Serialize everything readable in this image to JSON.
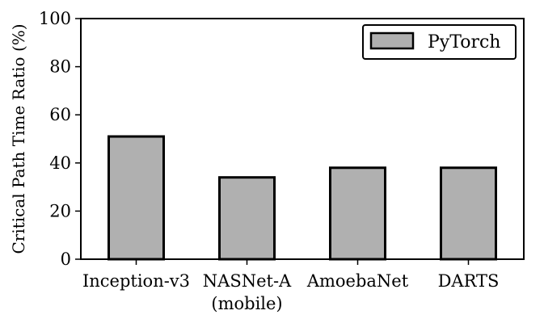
{
  "chart_data": {
    "type": "bar",
    "categories": [
      "Inception-v3",
      "NASNet-A\n(mobile)",
      "AmoebaNet",
      "DARTS"
    ],
    "series": [
      {
        "name": "PyTorch",
        "values": [
          51,
          34,
          38,
          38
        ],
        "color": "#b0b0b0"
      }
    ],
    "xlabel": "",
    "ylabel": "Critical Path Time Ratio (%)",
    "ylim": [
      0,
      100
    ],
    "yticks": [
      0,
      20,
      40,
      60,
      80,
      100
    ],
    "grid": false,
    "legend": "top-right",
    "edge_color": "#000000"
  }
}
